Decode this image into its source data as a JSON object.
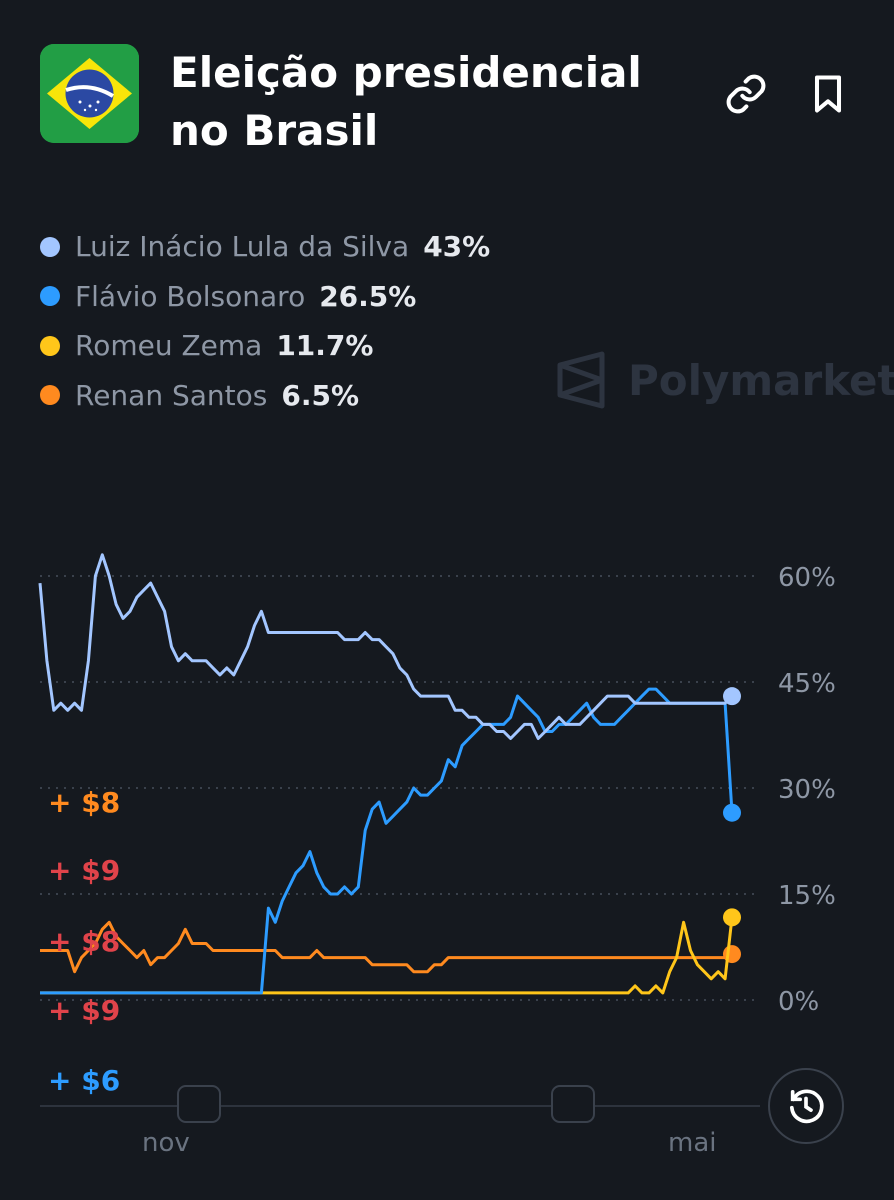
{
  "header": {
    "flag_icon": "brazil-flag-icon",
    "title_line1": "Eleição presidencial",
    "title_line2": "no Brasil",
    "link_icon": "link-icon",
    "bookmark_icon": "bookmark-icon"
  },
  "watermark": "Polymarket",
  "legend": [
    {
      "name": "Luiz Inácio Lula da Silva",
      "value": "43%",
      "color": "#a3c6ff"
    },
    {
      "name": "Flávio Bolsonaro",
      "value": "26.5%",
      "color": "#2d9cff"
    },
    {
      "name": "Romeu Zema",
      "value": "11.7%",
      "color": "#ffc61a"
    },
    {
      "name": "Renan Santos",
      "value": "6.5%",
      "color": "#ff8a1f"
    }
  ],
  "pnl_labels": [
    {
      "text": "+ $8",
      "color": "#ff8a1f"
    },
    {
      "text": "+ $9",
      "color": "#e0434a"
    },
    {
      "text": "+ $8",
      "color": "#e0434a"
    },
    {
      "text": "+ $9",
      "color": "#e0434a"
    },
    {
      "text": "+ $6",
      "color": "#2d9cff"
    }
  ],
  "history_icon": "clock-history-icon",
  "chart_data": {
    "type": "line",
    "y_ticks": [
      "60%",
      "45%",
      "30%",
      "15%",
      "0%"
    ],
    "ylim": [
      0,
      60
    ],
    "x_tick_labels": [
      "nov",
      "mai"
    ],
    "grid": true,
    "series": [
      {
        "name": "Luiz Inácio Lula da Silva",
        "color": "#a3c6ff",
        "x": [
          0,
          1,
          2,
          3,
          4,
          5,
          6,
          7,
          8,
          9,
          10,
          11,
          12,
          13,
          14,
          15,
          16,
          17,
          18,
          19,
          20,
          21,
          22,
          23,
          24,
          25,
          26,
          27,
          28,
          29,
          30,
          31,
          32,
          33,
          34,
          35,
          36,
          37,
          38,
          39,
          40,
          41,
          42,
          43,
          44,
          45,
          46,
          47,
          48,
          49,
          50,
          51,
          52,
          53,
          54,
          55,
          56,
          57,
          58,
          59,
          60,
          61,
          62,
          63,
          64,
          65,
          66,
          67,
          68,
          69,
          70,
          71,
          72,
          73,
          74,
          75,
          76,
          77,
          78,
          79,
          80,
          81,
          82,
          83,
          84,
          85,
          86,
          87,
          88,
          89,
          90,
          91,
          92,
          93,
          94,
          95,
          96,
          97,
          98,
          99,
          100
        ],
        "values": [
          59,
          48,
          41,
          42,
          41,
          42,
          41,
          48,
          60,
          63,
          60,
          56,
          54,
          55,
          57,
          58,
          59,
          57,
          55,
          50,
          48,
          49,
          48,
          48,
          48,
          47,
          46,
          47,
          46,
          48,
          50,
          53,
          55,
          52,
          52,
          52,
          52,
          52,
          52,
          52,
          52,
          52,
          52,
          52,
          51,
          51,
          51,
          52,
          51,
          51,
          50,
          49,
          47,
          46,
          44,
          43,
          43,
          43,
          43,
          43,
          41,
          41,
          40,
          40,
          39,
          39,
          38,
          38,
          37,
          38,
          39,
          39,
          37,
          38,
          39,
          40,
          39,
          39,
          39,
          40,
          41,
          42,
          43,
          43,
          43,
          43,
          42,
          42,
          42,
          42,
          42,
          42,
          42,
          42,
          42,
          42,
          42,
          42,
          42,
          42,
          43
        ]
      },
      {
        "name": "Flávio Bolsonaro",
        "color": "#2d9cff",
        "x": [
          0,
          1,
          2,
          3,
          4,
          5,
          6,
          7,
          8,
          9,
          10,
          11,
          12,
          13,
          14,
          15,
          16,
          17,
          18,
          19,
          20,
          21,
          22,
          23,
          24,
          25,
          26,
          27,
          28,
          29,
          30,
          31,
          32,
          33,
          34,
          35,
          36,
          37,
          38,
          39,
          40,
          41,
          42,
          43,
          44,
          45,
          46,
          47,
          48,
          49,
          50,
          51,
          52,
          53,
          54,
          55,
          56,
          57,
          58,
          59,
          60,
          61,
          62,
          63,
          64,
          65,
          66,
          67,
          68,
          69,
          70,
          71,
          72,
          73,
          74,
          75,
          76,
          77,
          78,
          79,
          80,
          81,
          82,
          83,
          84,
          85,
          86,
          87,
          88,
          89,
          90,
          91,
          92,
          93,
          94,
          95,
          96,
          97,
          98,
          99,
          100
        ],
        "values": [
          1,
          1,
          1,
          1,
          1,
          1,
          1,
          1,
          1,
          1,
          1,
          1,
          1,
          1,
          1,
          1,
          1,
          1,
          1,
          1,
          1,
          1,
          1,
          1,
          1,
          1,
          1,
          1,
          1,
          1,
          1,
          1,
          1,
          13,
          11,
          14,
          16,
          18,
          19,
          21,
          18,
          16,
          15,
          15,
          16,
          15,
          16,
          24,
          27,
          28,
          25,
          26,
          27,
          28,
          30,
          29,
          29,
          30,
          31,
          34,
          33,
          36,
          37,
          38,
          39,
          39,
          39,
          39,
          40,
          43,
          42,
          41,
          40,
          38,
          38,
          39,
          39,
          40,
          41,
          42,
          40,
          39,
          39,
          39,
          40,
          41,
          42,
          43,
          44,
          44,
          43,
          42,
          42,
          42,
          42,
          42,
          42,
          42,
          42,
          42,
          26.5
        ]
      },
      {
        "name": "Romeu Zema",
        "color": "#ffc61a",
        "x": [
          0,
          10,
          20,
          30,
          40,
          50,
          60,
          70,
          80,
          83,
          85,
          86,
          87,
          88,
          89,
          90,
          91,
          92,
          93,
          94,
          95,
          96,
          97,
          98,
          99,
          100
        ],
        "values": [
          1,
          1,
          1,
          1,
          1,
          1,
          1,
          1,
          1,
          1,
          1,
          2,
          1,
          1,
          2,
          1,
          4,
          6,
          11,
          7,
          5,
          4,
          3,
          4,
          3,
          11.7
        ]
      },
      {
        "name": "Renan Santos",
        "color": "#ff8a1f",
        "x": [
          0,
          1,
          2,
          3,
          4,
          5,
          6,
          7,
          8,
          9,
          10,
          11,
          12,
          13,
          14,
          15,
          16,
          17,
          18,
          19,
          20,
          21,
          22,
          23,
          24,
          25,
          26,
          27,
          28,
          29,
          30,
          31,
          32,
          33,
          34,
          35,
          36,
          37,
          38,
          39,
          40,
          41,
          42,
          43,
          44,
          45,
          46,
          47,
          48,
          49,
          50,
          51,
          52,
          53,
          54,
          55,
          56,
          57,
          58,
          59,
          60,
          61,
          62,
          63,
          64,
          65,
          66,
          67,
          68,
          69,
          70,
          71,
          72,
          73,
          74,
          75,
          76,
          77,
          78,
          79,
          80,
          81,
          82,
          83,
          84,
          85,
          86,
          87,
          88,
          89,
          90,
          91,
          92,
          93,
          94,
          95,
          96,
          97,
          98,
          99,
          100
        ],
        "values": [
          7,
          7,
          7,
          7,
          7,
          4,
          6,
          7,
          8,
          10,
          11,
          9,
          8,
          7,
          6,
          7,
          5,
          6,
          6,
          7,
          8,
          10,
          8,
          8,
          8,
          7,
          7,
          7,
          7,
          7,
          7,
          7,
          7,
          7,
          7,
          6,
          6,
          6,
          6,
          6,
          7,
          6,
          6,
          6,
          6,
          6,
          6,
          6,
          5,
          5,
          5,
          5,
          5,
          5,
          4,
          4,
          4,
          5,
          5,
          6,
          6,
          6,
          6,
          6,
          6,
          6,
          6,
          6,
          6,
          6,
          6,
          6,
          6,
          6,
          6,
          6,
          6,
          6,
          6,
          6,
          6,
          6,
          6,
          6,
          6,
          6,
          6,
          6,
          6,
          6,
          6,
          6,
          6,
          6,
          6,
          6,
          6,
          6,
          6,
          6,
          6.5
        ]
      }
    ]
  }
}
